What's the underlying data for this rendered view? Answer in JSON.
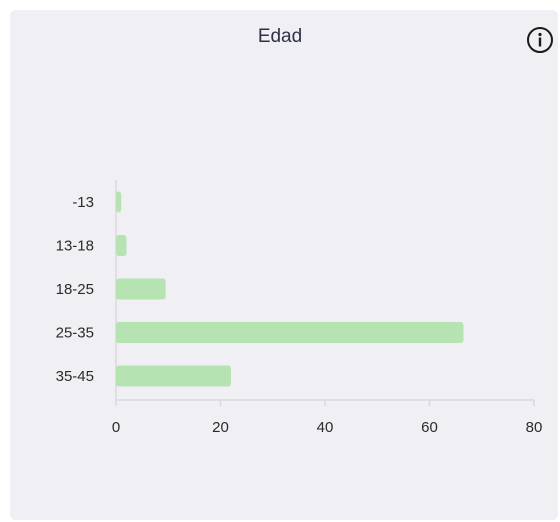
{
  "chart_data": {
    "type": "bar",
    "orientation": "horizontal",
    "title": "Edad",
    "categories": [
      "-13",
      "13-18",
      "18-25",
      "25-35",
      "35-45"
    ],
    "values": [
      1,
      2,
      9.5,
      66.5,
      22
    ],
    "xlim": [
      0,
      80
    ],
    "xticks": [
      "0",
      "20",
      "40",
      "60",
      "80"
    ],
    "grid": false,
    "bar_color": "#b5e3b2",
    "axis_color": "#d8d8de"
  },
  "header": {
    "info_icon": "info-icon"
  }
}
